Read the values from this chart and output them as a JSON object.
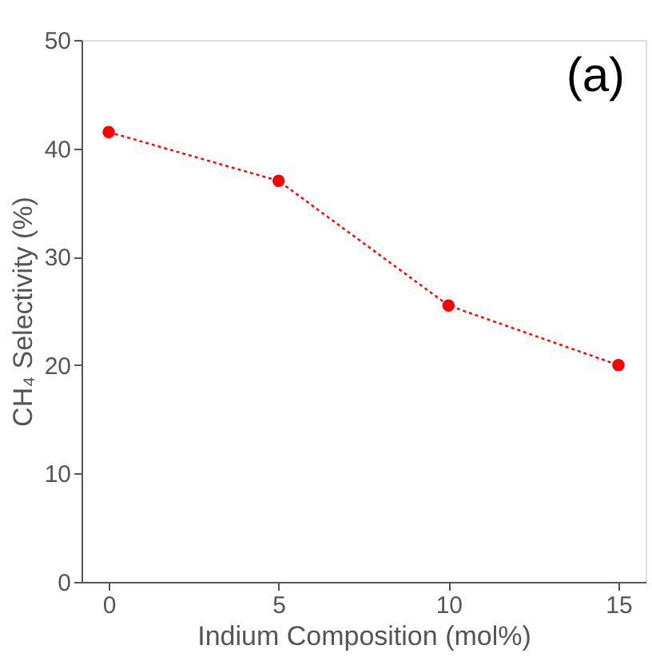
{
  "chart_data": {
    "type": "line",
    "xlabel": "Indium Composition (mol%)",
    "ylabel": "CH₄ Selectivity (%)",
    "x": [
      0,
      5,
      10,
      15
    ],
    "series": [
      {
        "color": "#ff0000",
        "values": [
          41.5,
          37,
          25.5,
          20
        ]
      }
    ],
    "xlim": [
      -0.8,
      15.8
    ],
    "xticks": [
      0,
      5,
      10,
      15
    ],
    "ylim": [
      0,
      50
    ],
    "yticks": [
      0,
      10,
      20,
      30,
      40,
      50
    ],
    "marker": "circle",
    "line_style": "dotted",
    "grid": false,
    "annotations": [
      "(a)"
    ]
  }
}
